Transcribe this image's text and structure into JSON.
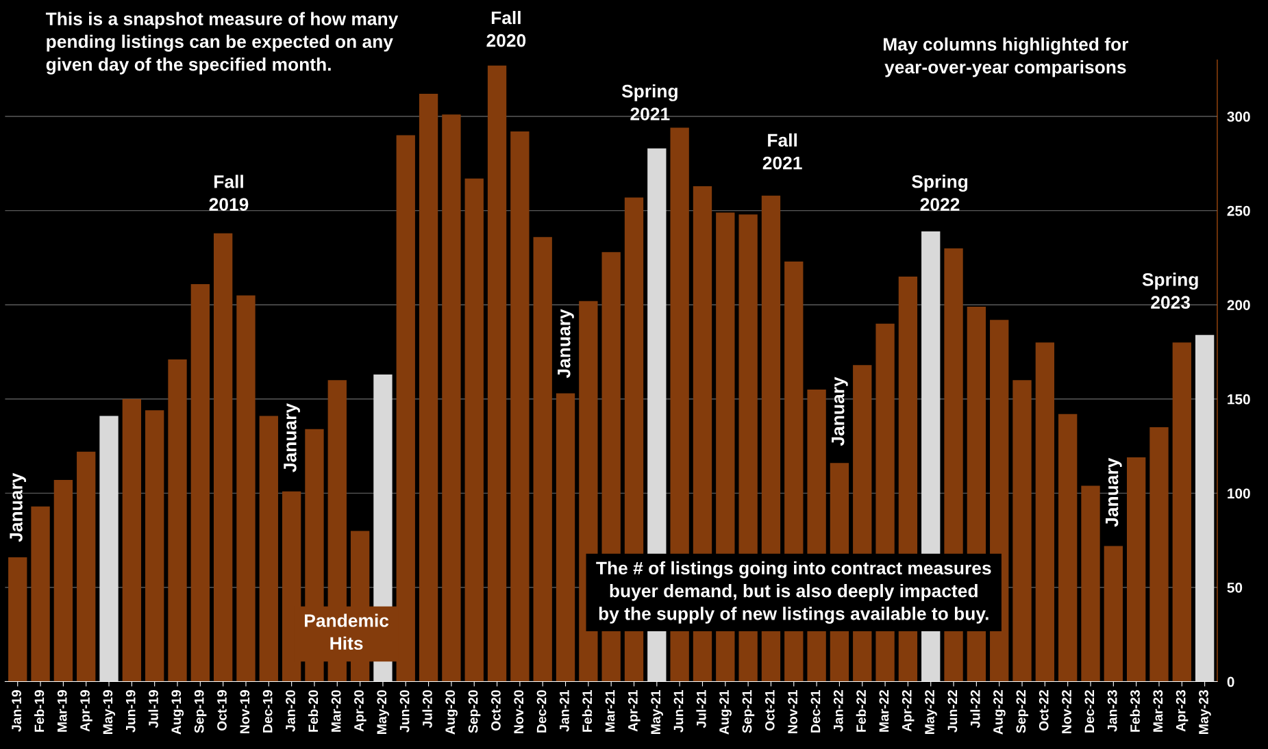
{
  "chart_data": {
    "type": "bar",
    "categories": [
      "Jan-19",
      "Feb-19",
      "Mar-19",
      "Apr-19",
      "May-19",
      "Jun-19",
      "Jul-19",
      "Aug-19",
      "Sep-19",
      "Oct-19",
      "Nov-19",
      "Dec-19",
      "Jan-20",
      "Feb-20",
      "Mar-20",
      "Apr-20",
      "May-20",
      "Jun-20",
      "Jul-20",
      "Aug-20",
      "Sep-20",
      "Oct-20",
      "Nov-20",
      "Dec-20",
      "Jan-21",
      "Feb-21",
      "Mar-21",
      "Apr-21",
      "May-21",
      "Jun-21",
      "Jul-21",
      "Aug-21",
      "Sep-21",
      "Oct-21",
      "Nov-21",
      "Dec-21",
      "Jan-22",
      "Feb-22",
      "Mar-22",
      "Apr-22",
      "May-22",
      "Jun-22",
      "Jul-22",
      "Aug-22",
      "Sep-22",
      "Oct-22",
      "Nov-22",
      "Dec-22",
      "Jan-23",
      "Feb-23",
      "Mar-23",
      "Apr-23",
      "May-23"
    ],
    "values": [
      66,
      93,
      107,
      122,
      141,
      150,
      144,
      171,
      211,
      238,
      205,
      141,
      101,
      134,
      160,
      80,
      163,
      290,
      312,
      301,
      267,
      327,
      292,
      236,
      153,
      202,
      228,
      257,
      283,
      294,
      263,
      249,
      248,
      258,
      223,
      155,
      116,
      168,
      190,
      215,
      239,
      230,
      199,
      192,
      160,
      180,
      142,
      104,
      72,
      119,
      135,
      180,
      184
    ],
    "colors": [
      "#843c0c",
      "#843c0c",
      "#843c0c",
      "#843c0c",
      "#d9d9d9",
      "#843c0c",
      "#843c0c",
      "#843c0c",
      "#843c0c",
      "#843c0c",
      "#843c0c",
      "#843c0c",
      "#843c0c",
      "#843c0c",
      "#843c0c",
      "#843c0c",
      "#d9d9d9",
      "#843c0c",
      "#843c0c",
      "#843c0c",
      "#843c0c",
      "#843c0c",
      "#843c0c",
      "#843c0c",
      "#843c0c",
      "#843c0c",
      "#843c0c",
      "#843c0c",
      "#d9d9d9",
      "#843c0c",
      "#843c0c",
      "#843c0c",
      "#843c0c",
      "#843c0c",
      "#843c0c",
      "#843c0c",
      "#843c0c",
      "#843c0c",
      "#843c0c",
      "#843c0c",
      "#d9d9d9",
      "#843c0c",
      "#843c0c",
      "#843c0c",
      "#843c0c",
      "#843c0c",
      "#843c0c",
      "#843c0c",
      "#843c0c",
      "#843c0c",
      "#843c0c",
      "#843c0c",
      "#d9d9d9"
    ],
    "ylim": [
      0,
      330
    ],
    "yticks": [
      0,
      50,
      100,
      150,
      200,
      250,
      300
    ],
    "grid": "y",
    "annotations": [
      "This is a snapshot measure of how many\npending listings can be expected on any\ngiven day of the specified month.",
      "May columns highlighted for\nyear-over-year comparisons",
      "The # of listings going into contract measures\nbuyer demand, but is also deeply impacted\nby the supply of new listings available to buy.",
      "January",
      "January",
      "January",
      "January",
      "January",
      "Fall\n2019",
      "Fall\n2020",
      "Fall\n2021",
      "Spring\n2021",
      "Spring\n2022",
      "Spring\n2023",
      "Pandemic\nHits"
    ]
  }
}
